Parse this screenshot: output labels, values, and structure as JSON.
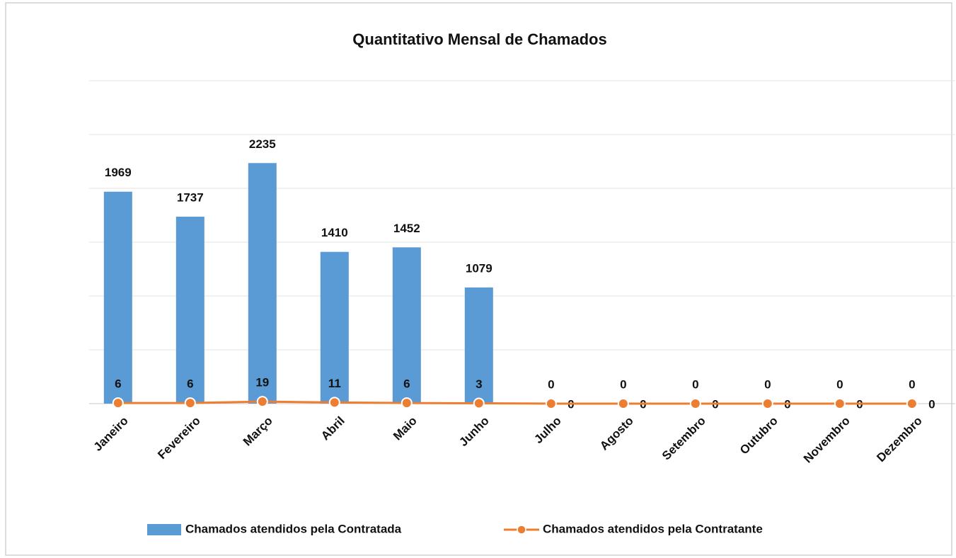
{
  "chart_data": {
    "type": "bar_line",
    "title": "Quantitativo Mensal de Chamados",
    "categories": [
      "Janeiro",
      "Fevereiro",
      "Março",
      "Abril",
      "Maio",
      "Junho",
      "Julho",
      "Agosto",
      "Setembro",
      "Outubro",
      "Novembro",
      "Dezembro"
    ],
    "series": [
      {
        "name": "Chamados atendidos pela Contratada",
        "type": "bar",
        "color": "#5b9bd5",
        "values": [
          1969,
          1737,
          2235,
          1410,
          1452,
          1079,
          0,
          0,
          0,
          0,
          0,
          0
        ]
      },
      {
        "name": "Chamados atendidos pela Contratante",
        "type": "line",
        "color": "#ed7d31",
        "values": [
          6,
          6,
          19,
          11,
          6,
          3,
          0,
          0,
          0,
          0,
          0,
          0
        ]
      }
    ],
    "ylim": [
      0,
      3000
    ],
    "yticks": [
      0,
      500,
      1000,
      1500,
      2000,
      2500,
      3000
    ],
    "grid": true,
    "legend": "bottom"
  }
}
